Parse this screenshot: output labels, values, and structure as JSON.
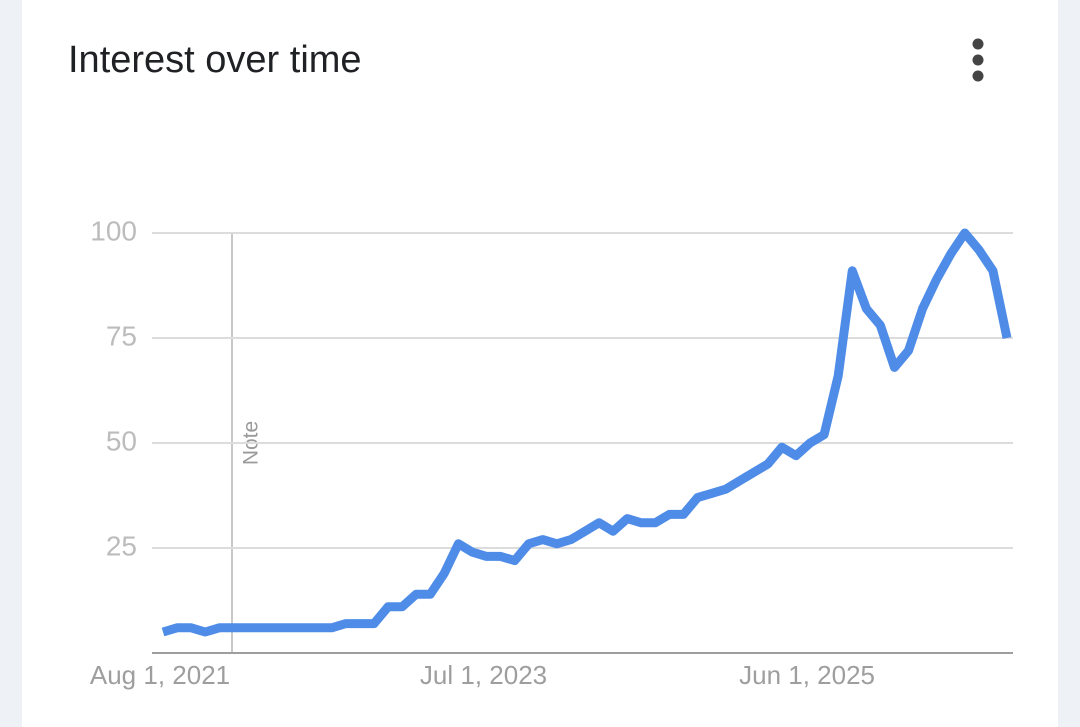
{
  "chart_data": {
    "type": "line",
    "title": "Interest over time",
    "categories": [
      "Aug 1, 2021",
      null,
      null,
      null,
      null,
      null,
      null,
      null,
      null,
      null,
      null,
      null,
      null,
      null,
      null,
      null,
      null,
      null,
      null,
      null,
      null,
      null,
      null,
      "Jul 1, 2023",
      null,
      null,
      null,
      null,
      null,
      null,
      null,
      null,
      null,
      null,
      null,
      null,
      null,
      null,
      null,
      null,
      null,
      null,
      null,
      null,
      null,
      null,
      "Jun 1, 2025",
      null,
      null,
      null,
      null,
      null,
      null,
      null,
      null,
      null,
      null,
      null,
      null,
      null,
      null
    ],
    "values": [
      5,
      6,
      6,
      5,
      6,
      6,
      6,
      6,
      6,
      6,
      6,
      6,
      6,
      7,
      7,
      7,
      11,
      11,
      14,
      14,
      19,
      26,
      24,
      23,
      23,
      22,
      26,
      27,
      26,
      27,
      29,
      31,
      29,
      32,
      31,
      31,
      33,
      33,
      37,
      38,
      39,
      41,
      43,
      45,
      49,
      47,
      50,
      52,
      66,
      91,
      82,
      78,
      68,
      72,
      82,
      89,
      95,
      100,
      96,
      91,
      75
    ],
    "color": "#4e8ce8",
    "ylim": [
      0,
      100
    ],
    "yticks": [
      25,
      50,
      75,
      100
    ],
    "grid": true,
    "annotation": "Note"
  }
}
